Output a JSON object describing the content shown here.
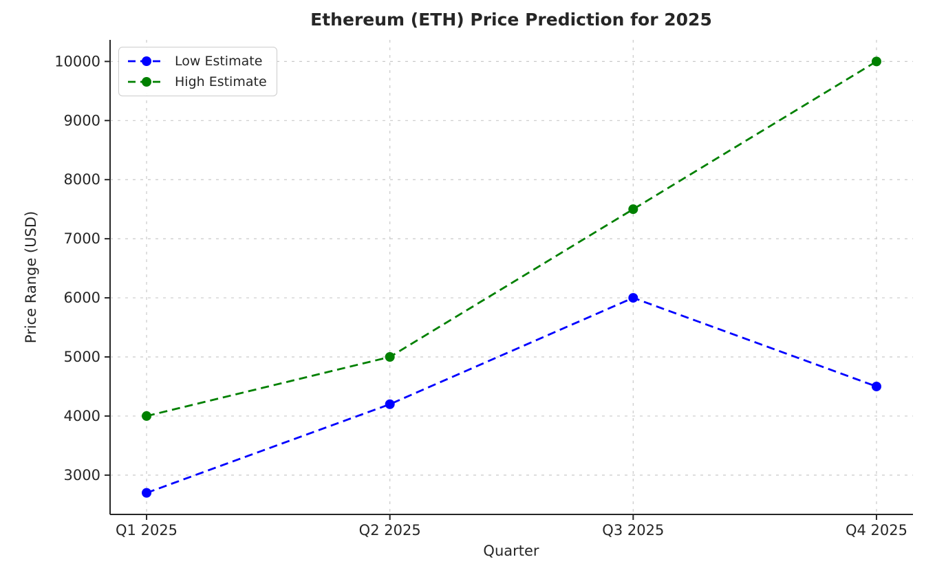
{
  "chart_data": {
    "type": "line",
    "title": "Ethereum (ETH) Price Prediction for 2025",
    "xlabel": "Quarter",
    "ylabel": "Price Range (USD)",
    "categories": [
      "Q1 2025",
      "Q2 2025",
      "Q3 2025",
      "Q4 2025"
    ],
    "series": [
      {
        "name": "Low Estimate",
        "color": "#0000ff",
        "values": [
          2700,
          4200,
          6000,
          4500
        ]
      },
      {
        "name": "High Estimate",
        "color": "#008000",
        "values": [
          4000,
          5000,
          7500,
          10000
        ]
      }
    ],
    "yticks": [
      3000,
      4000,
      5000,
      6000,
      7000,
      8000,
      9000,
      10000
    ],
    "ylim": [
      2335,
      10365
    ],
    "xlim": [
      -0.15,
      3.15
    ],
    "grid": true,
    "grid_style": "dashed",
    "line_style": "dashed",
    "marker": "circle",
    "legend_position": "upper-left"
  },
  "style": {
    "grid_color": "#c9c9c9",
    "spine_color": "#262626",
    "text_color": "#262626",
    "background": "#ffffff"
  }
}
